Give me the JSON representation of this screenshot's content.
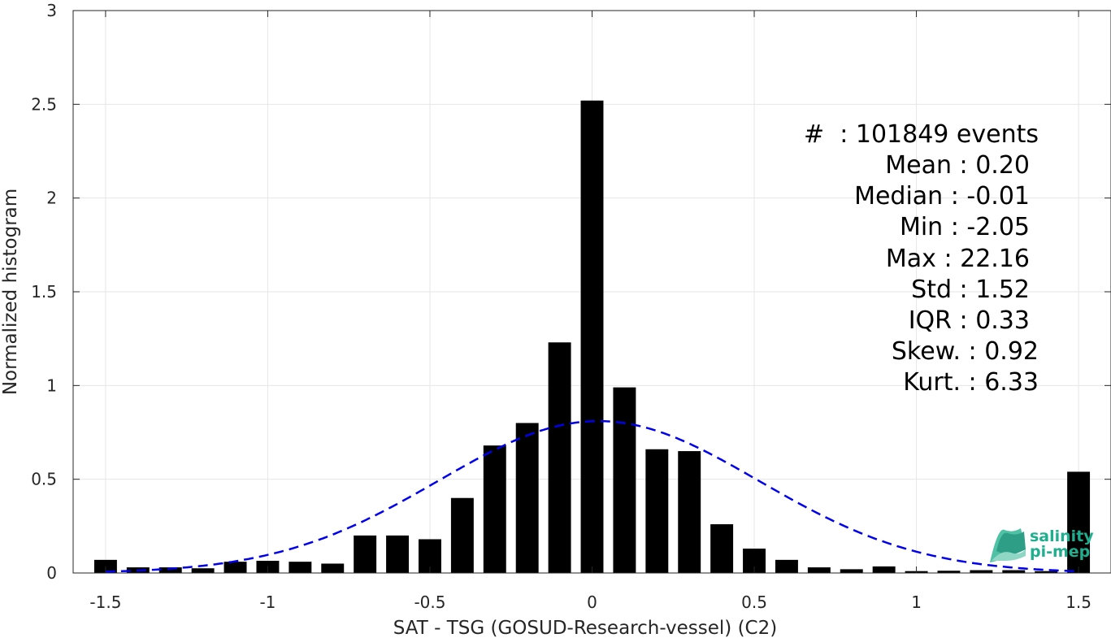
{
  "chart_data": {
    "type": "bar",
    "xlabel": "SAT - TSG (GOSUD-Research-vessel) (C2)",
    "ylabel": "Normalized histogram",
    "xlim": [
      -1.6,
      1.6
    ],
    "ylim": [
      0,
      3
    ],
    "xticks": [
      -1.5,
      -1,
      -0.5,
      0,
      0.5,
      1,
      1.5
    ],
    "xtick_labels": [
      "-1.5",
      "-1",
      "-0.5",
      "0",
      "0.5",
      "1",
      "1.5"
    ],
    "yticks": [
      0,
      0.5,
      1,
      1.5,
      2,
      2.5,
      3
    ],
    "ytick_labels": [
      "0",
      "0.5",
      "1",
      "1.5",
      "2",
      "2.5",
      "3"
    ],
    "grid": true,
    "bar_color": "#000000",
    "bins": [
      {
        "x": -1.5,
        "y": 0.07
      },
      {
        "x": -1.4,
        "y": 0.03
      },
      {
        "x": -1.3,
        "y": 0.03
      },
      {
        "x": -1.2,
        "y": 0.025
      },
      {
        "x": -1.1,
        "y": 0.06
      },
      {
        "x": -1.0,
        "y": 0.065
      },
      {
        "x": -0.9,
        "y": 0.06
      },
      {
        "x": -0.8,
        "y": 0.05
      },
      {
        "x": -0.7,
        "y": 0.2
      },
      {
        "x": -0.6,
        "y": 0.2
      },
      {
        "x": -0.5,
        "y": 0.18
      },
      {
        "x": -0.4,
        "y": 0.4
      },
      {
        "x": -0.3,
        "y": 0.68
      },
      {
        "x": -0.2,
        "y": 0.8
      },
      {
        "x": -0.1,
        "y": 1.23
      },
      {
        "x": 0.0,
        "y": 2.52
      },
      {
        "x": 0.1,
        "y": 0.99
      },
      {
        "x": 0.2,
        "y": 0.66
      },
      {
        "x": 0.3,
        "y": 0.65
      },
      {
        "x": 0.4,
        "y": 0.26
      },
      {
        "x": 0.5,
        "y": 0.13
      },
      {
        "x": 0.6,
        "y": 0.07
      },
      {
        "x": 0.7,
        "y": 0.03
      },
      {
        "x": 0.8,
        "y": 0.02
      },
      {
        "x": 0.9,
        "y": 0.035
      },
      {
        "x": 1.0,
        "y": 0.01
      },
      {
        "x": 1.1,
        "y": 0.012
      },
      {
        "x": 1.2,
        "y": 0.015
      },
      {
        "x": 1.3,
        "y": 0.015
      },
      {
        "x": 1.4,
        "y": 0.01
      },
      {
        "x": 1.5,
        "y": 0.54
      }
    ],
    "fit_curve": {
      "style": "dashed",
      "color": "#0000ee",
      "peak_x": 0.02,
      "peak_y": 0.81,
      "x_start": -1.5,
      "x_end": 1.5
    },
    "stats": [
      "#  : 101849 events",
      "Mean : 0.20",
      "Median : -0.01",
      "Min : -2.05",
      "Max : 22.16",
      "Std : 1.52",
      "IQR : 0.33",
      "Skew. : 0.92",
      "Kurt. : 6.33"
    ]
  },
  "logo": {
    "line1": "salinity",
    "line2": "pi-mep",
    "color": "#1fae8e"
  }
}
